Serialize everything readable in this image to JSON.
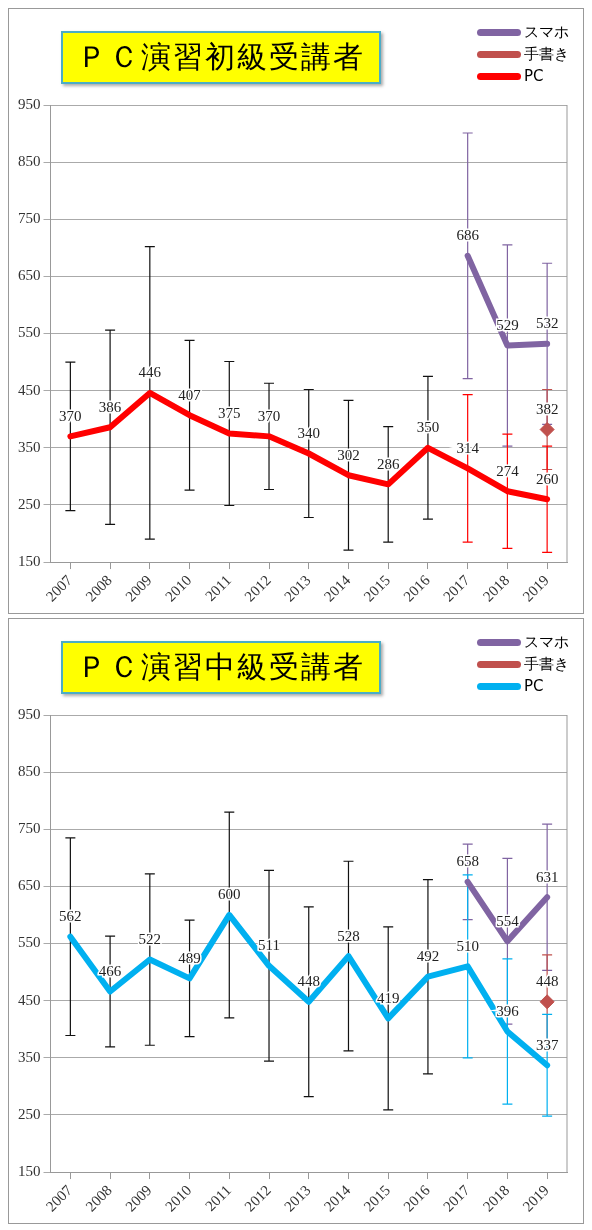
{
  "chart_data": [
    {
      "type": "line",
      "title": "ＰＣ演習初級受講者",
      "categories": [
        "2007",
        "2008",
        "2009",
        "2010",
        "2011",
        "2012",
        "2013",
        "2014",
        "2015",
        "2016",
        "2017",
        "2018",
        "2019"
      ],
      "ylim": [
        150,
        950
      ],
      "yticks": [
        150,
        250,
        350,
        450,
        550,
        650,
        750,
        850,
        950
      ],
      "grid": "y",
      "legend": "top right",
      "data_labels": true,
      "series": [
        {
          "name": "スマホ",
          "color": "#8064a2",
          "type": "line",
          "marker": "none",
          "values": [
            null,
            null,
            null,
            null,
            null,
            null,
            null,
            null,
            null,
            null,
            686,
            529,
            532
          ],
          "errors": [
            null,
            null,
            null,
            null,
            null,
            null,
            null,
            null,
            null,
            null,
            215,
            176,
            141
          ]
        },
        {
          "name": "手書き",
          "color": "#c0504d",
          "type": "scatter",
          "marker": "diamond",
          "values": [
            null,
            null,
            null,
            null,
            null,
            null,
            null,
            null,
            null,
            null,
            null,
            null,
            382
          ],
          "errors": [
            null,
            null,
            null,
            null,
            null,
            null,
            null,
            null,
            null,
            null,
            null,
            null,
            70
          ]
        },
        {
          "name": "PC",
          "color": "#ff0000",
          "type": "line",
          "marker": "none",
          "values": [
            370,
            386,
            446,
            407,
            375,
            370,
            340,
            302,
            286,
            350,
            314,
            274,
            260
          ],
          "errors": [
            130,
            170,
            256,
            131,
            126,
            93,
            112,
            131,
            101,
            125,
            129,
            100,
            93
          ]
        }
      ]
    },
    {
      "type": "line",
      "title": "ＰＣ演習中級受講者",
      "categories": [
        "2007",
        "2008",
        "2009",
        "2010",
        "2011",
        "2012",
        "2013",
        "2014",
        "2015",
        "2016",
        "2017",
        "2018",
        "2019"
      ],
      "ylim": [
        150,
        950
      ],
      "yticks": [
        150,
        250,
        350,
        450,
        550,
        650,
        750,
        850,
        950
      ],
      "grid": "y",
      "legend": "top right",
      "data_labels": true,
      "series": [
        {
          "name": "スマホ",
          "color": "#8064a2",
          "type": "line",
          "marker": "none",
          "values": [
            null,
            null,
            null,
            null,
            null,
            null,
            null,
            null,
            null,
            null,
            658,
            554,
            631
          ],
          "errors": [
            null,
            null,
            null,
            null,
            null,
            null,
            null,
            null,
            null,
            null,
            66,
            145,
            128
          ]
        },
        {
          "name": "手書き",
          "color": "#c0504d",
          "type": "scatter",
          "marker": "diamond",
          "values": [
            null,
            null,
            null,
            null,
            null,
            null,
            null,
            null,
            null,
            null,
            null,
            null,
            448
          ],
          "errors": [
            null,
            null,
            null,
            null,
            null,
            null,
            null,
            null,
            null,
            null,
            null,
            null,
            82
          ]
        },
        {
          "name": "PC",
          "color": "#00b0f0",
          "type": "line",
          "marker": "none",
          "values": [
            562,
            466,
            522,
            489,
            600,
            511,
            448,
            528,
            419,
            492,
            510,
            396,
            337
          ],
          "errors": [
            173,
            97,
            150,
            102,
            180,
            167,
            166,
            166,
            160,
            170,
            160,
            127,
            89
          ]
        }
      ]
    }
  ]
}
